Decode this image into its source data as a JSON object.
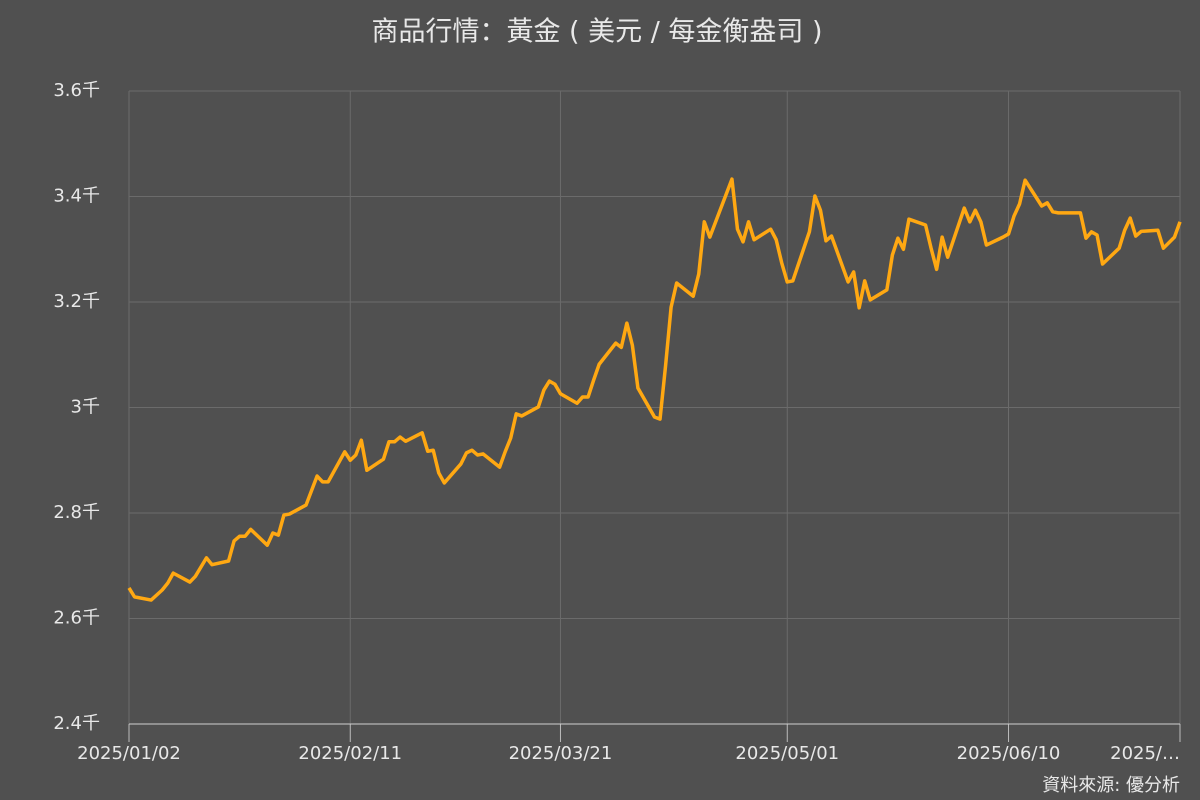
{
  "chart_data": {
    "type": "line",
    "title": "商品行情：黃金 ( 美元 / 每金衡盎司 )",
    "source": "資料來源: 優分析",
    "x": [
      "2025/01/02",
      "2025/01/03",
      "2025/01/06",
      "2025/01/08",
      "2025/01/09",
      "2025/01/10",
      "2025/01/13",
      "2025/01/14",
      "2025/01/16",
      "2025/01/17",
      "2025/01/20",
      "2025/01/21",
      "2025/01/22",
      "2025/01/23",
      "2025/01/24",
      "2025/01/27",
      "2025/01/28",
      "2025/01/29",
      "2025/01/30",
      "2025/01/31",
      "2025/02/03",
      "2025/02/05",
      "2025/02/06",
      "2025/02/07",
      "2025/02/10",
      "2025/02/11",
      "2025/02/12",
      "2025/02/13",
      "2025/02/14",
      "2025/02/17",
      "2025/02/18",
      "2025/02/19",
      "2025/02/20",
      "2025/02/21",
      "2025/02/24",
      "2025/02/25",
      "2025/02/26",
      "2025/02/27",
      "2025/02/28",
      "2025/03/03",
      "2025/03/04",
      "2025/03/05",
      "2025/03/06",
      "2025/03/07",
      "2025/03/10",
      "2025/03/11",
      "2025/03/12",
      "2025/03/13",
      "2025/03/14",
      "2025/03/17",
      "2025/03/18",
      "2025/03/19",
      "2025/03/20",
      "2025/03/21",
      "2025/03/24",
      "2025/03/25",
      "2025/03/26",
      "2025/03/27",
      "2025/03/28",
      "2025/03/31",
      "2025/04/01",
      "2025/04/02",
      "2025/04/03",
      "2025/04/04",
      "2025/04/07",
      "2025/04/08",
      "2025/04/09",
      "2025/04/10",
      "2025/04/11",
      "2025/04/14",
      "2025/04/15",
      "2025/04/16",
      "2025/04/17",
      "2025/04/21",
      "2025/04/22",
      "2025/04/23",
      "2025/04/24",
      "2025/04/25",
      "2025/04/28",
      "2025/04/29",
      "2025/04/30",
      "2025/05/01",
      "2025/05/02",
      "2025/05/05",
      "2025/05/06",
      "2025/05/07",
      "2025/05/08",
      "2025/05/09",
      "2025/05/12",
      "2025/05/13",
      "2025/05/14",
      "2025/05/15",
      "2025/05/16",
      "2025/05/19",
      "2025/05/20",
      "2025/05/21",
      "2025/05/22",
      "2025/05/23",
      "2025/05/26",
      "2025/05/27",
      "2025/05/28",
      "2025/05/29",
      "2025/05/30",
      "2025/06/02",
      "2025/06/03",
      "2025/06/04",
      "2025/06/05",
      "2025/06/06",
      "2025/06/09",
      "2025/06/10",
      "2025/06/11",
      "2025/06/12",
      "2025/06/13",
      "2025/06/16",
      "2025/06/17",
      "2025/06/18",
      "2025/06/19",
      "2025/06/23",
      "2025/06/24",
      "2025/06/25",
      "2025/06/26",
      "2025/06/27",
      "2025/06/30",
      "2025/07/01",
      "2025/07/02",
      "2025/07/03",
      "2025/07/04",
      "2025/07/07",
      "2025/07/08",
      "2025/07/10",
      "2025/07/11"
    ],
    "series": [
      {
        "name": "黃金",
        "color": "#ffa812",
        "values": [
          2658,
          2641,
          2635,
          2654,
          2667,
          2686,
          2669,
          2680,
          2715,
          2702,
          2709,
          2747,
          2756,
          2756,
          2769,
          2739,
          2762,
          2758,
          2796,
          2798,
          2815,
          2870,
          2859,
          2859,
          2916,
          2900,
          2910,
          2938,
          2881,
          2902,
          2935,
          2935,
          2944,
          2936,
          2952,
          2917,
          2919,
          2876,
          2857,
          2893,
          2914,
          2919,
          2910,
          2912,
          2887,
          2916,
          2942,
          2988,
          2984,
          3001,
          3033,
          3050,
          3044,
          3026,
          3008,
          3020,
          3020,
          3052,
          3082,
          3122,
          3114,
          3160,
          3118,
          3037,
          2982,
          2978,
          3079,
          3190,
          3236,
          3211,
          3253,
          3352,
          3323,
          3433,
          3338,
          3314,
          3352,
          3318,
          3338,
          3318,
          3274,
          3238,
          3240,
          3333,
          3401,
          3374,
          3316,
          3325,
          3238,
          3257,
          3189,
          3240,
          3204,
          3223,
          3289,
          3321,
          3300,
          3357,
          3346,
          3302,
          3262,
          3323,
          3285,
          3378,
          3352,
          3374,
          3352,
          3308,
          3323,
          3329,
          3363,
          3386,
          3431,
          3382,
          3388,
          3371,
          3369,
          3369,
          3321,
          3333,
          3327,
          3272,
          3302,
          3336,
          3359,
          3325,
          3334,
          3336,
          3302,
          3323,
          3352
        ]
      }
    ],
    "xlim": [
      "2025/01/02",
      "2025/07/11"
    ],
    "xticks": [
      "2025/01/02",
      "2025/02/11",
      "2025/03/21",
      "2025/05/01",
      "2025/06/10",
      {
        "value": "2025/07/11",
        "label": "2025/…"
      }
    ],
    "ylim": [
      2400,
      3600
    ],
    "yticks": [
      {
        "value": 2400,
        "label": "2.4千"
      },
      {
        "value": 2600,
        "label": "2.6千"
      },
      {
        "value": 2800,
        "label": "2.8千"
      },
      {
        "value": 3000,
        "label": "3千"
      },
      {
        "value": 3200,
        "label": "3.2千"
      },
      {
        "value": 3400,
        "label": "3.4千"
      },
      {
        "value": 3600,
        "label": "3.6千"
      }
    ],
    "grid": true
  }
}
